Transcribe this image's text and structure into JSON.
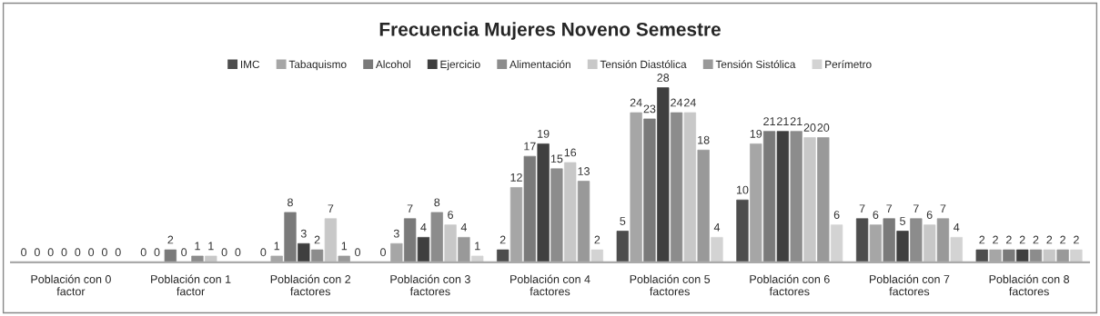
{
  "chart_data": {
    "type": "bar",
    "title": "Frecuencia Mujeres Noveno Semestre",
    "categories": [
      "Población con 0\nfactor",
      "Población con 1\nfactor",
      "Población con 2\nfactores",
      "Población con 3\nfactores",
      "Población con 4\nfactores",
      "Población con 5\nfactores",
      "Población con 6\nfactores",
      "Población con 7\nfactores",
      "Población con 8\nfactores"
    ],
    "series": [
      {
        "name": "IMC",
        "color": "#4d4d4d",
        "values": [
          0,
          0,
          0,
          0,
          2,
          5,
          10,
          7,
          2
        ]
      },
      {
        "name": "Tabaquismo",
        "color": "#a6a6a6",
        "values": [
          0,
          0,
          1,
          3,
          12,
          24,
          19,
          6,
          2
        ]
      },
      {
        "name": "Alcohol",
        "color": "#7a7a7a",
        "values": [
          0,
          2,
          8,
          7,
          17,
          23,
          21,
          7,
          2
        ]
      },
      {
        "name": "Ejercicio",
        "color": "#3f3f3f",
        "values": [
          0,
          0,
          3,
          4,
          19,
          28,
          21,
          5,
          2
        ]
      },
      {
        "name": "Alimentación",
        "color": "#8c8c8c",
        "values": [
          0,
          1,
          2,
          8,
          15,
          24,
          21,
          7,
          2
        ]
      },
      {
        "name": "Tensión Diastólica",
        "color": "#c8c8c8",
        "values": [
          0,
          1,
          7,
          6,
          16,
          24,
          20,
          6,
          2
        ]
      },
      {
        "name": "Tensión Sistólica",
        "color": "#999999",
        "values": [
          0,
          0,
          1,
          4,
          13,
          18,
          20,
          7,
          2
        ]
      },
      {
        "name": "Perímetro",
        "color": "#d3d3d3",
        "values": [
          0,
          0,
          0,
          1,
          2,
          4,
          6,
          4,
          2
        ]
      }
    ],
    "data_labels": true,
    "legend": "top",
    "grid": false
  }
}
